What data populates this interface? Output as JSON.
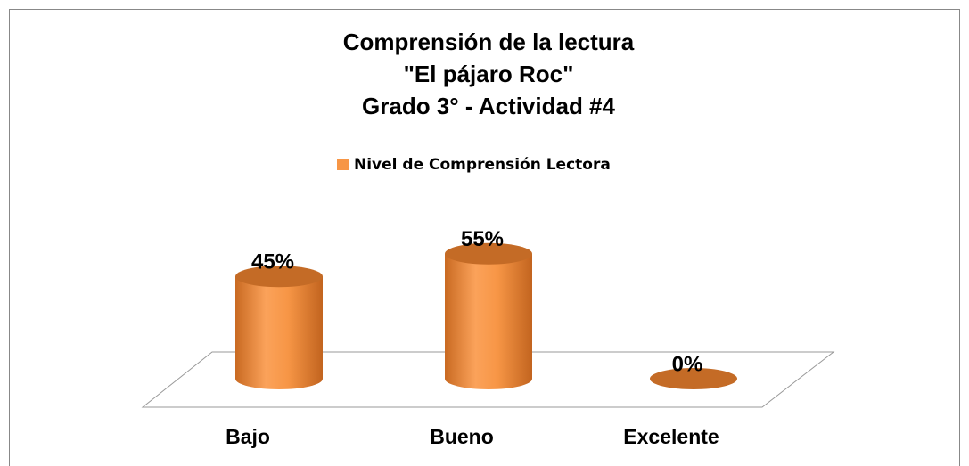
{
  "chart_data": {
    "type": "bar3d",
    "title": [
      "Comprensión de la lectura",
      "\"El pájaro Roc\"",
      "Grado 3° - Actividad #4"
    ],
    "categories": [
      "Bajo",
      "Bueno",
      "Excelente"
    ],
    "series": [
      {
        "name": "Nivel de Comprensión Lectora",
        "color": "#f79646",
        "values": [
          45,
          55,
          0
        ],
        "value_labels": [
          "45%",
          "55%",
          "0%"
        ]
      }
    ]
  }
}
